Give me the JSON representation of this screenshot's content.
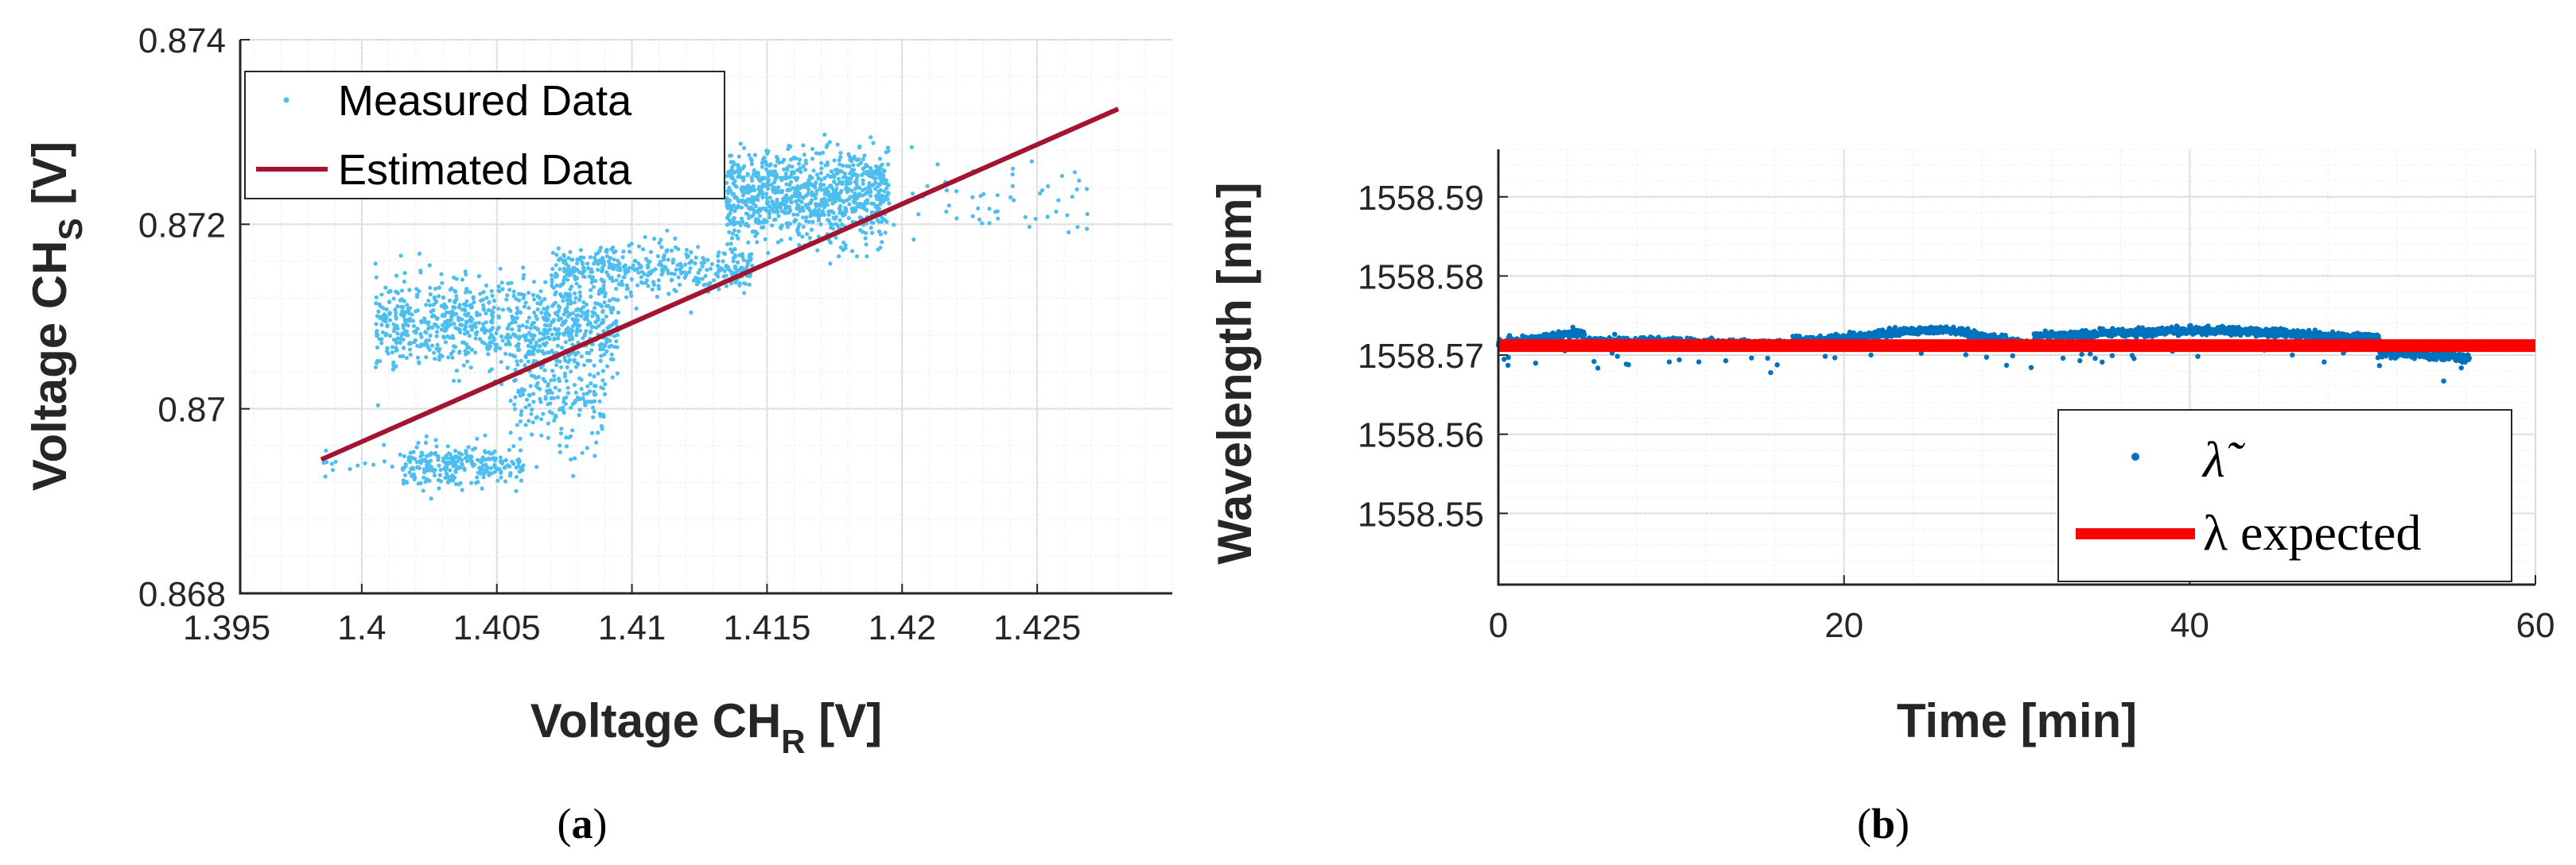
{
  "chart_data": [
    {
      "panel": "a",
      "type": "scatter",
      "xlabel": "Voltage CH",
      "xlabel_sub": "R",
      "xlabel_unit": " [V]",
      "ylabel": "Voltage CH",
      "ylabel_sub": "S",
      "ylabel_unit": " [V]",
      "xlim": [
        1.3955,
        1.43
      ],
      "ylim": [
        0.868,
        0.874
      ],
      "xticks": [
        1.395,
        1.4,
        1.405,
        1.41,
        1.415,
        1.42,
        1.425
      ],
      "xtick_labels": [
        "1.395",
        "1.4",
        "1.405",
        "1.41",
        "1.415",
        "1.42",
        "1.425"
      ],
      "yticks": [
        0.868,
        0.87,
        0.872,
        0.874
      ],
      "ytick_labels": [
        "0.868",
        "0.87",
        "0.872",
        "0.874"
      ],
      "grid": true,
      "legend_position": "top-left",
      "legend_labels": [
        "Measured Data",
        "Estimated Data"
      ],
      "series": [
        {
          "name": "Measured Data",
          "kind": "scatter",
          "color": "#4dbeee",
          "clusters": [
            {
              "x_range": [
                1.4005,
                1.4095
              ],
              "y_center": 0.8709,
              "y_spread": 0.00045,
              "count": 900
            },
            {
              "x_range": [
                1.4135,
                1.4195
              ],
              "y_center": 0.8723,
              "y_spread": 0.00045,
              "count": 900
            },
            {
              "x_range": [
                1.407,
                1.4145
              ],
              "y_center": 0.8715,
              "y_spread": 0.00025,
              "count": 400
            },
            {
              "x_range": [
                1.4015,
                1.406
              ],
              "y_center": 0.8694,
              "y_spread": 0.0002,
              "count": 280
            },
            {
              "x_range": [
                1.4055,
                1.409
              ],
              "y_center": 0.8701,
              "y_spread": 0.0005,
              "count": 180
            },
            {
              "x_range": [
                1.419,
                1.427
              ],
              "y_center": 0.8723,
              "y_spread": 0.0004,
              "count": 60
            },
            {
              "x_range": [
                1.3985,
                1.4015
              ],
              "y_center": 0.8694,
              "y_spread": 0.0002,
              "count": 15
            }
          ]
        },
        {
          "name": "Estimated Data",
          "kind": "line",
          "color": "#a2142f",
          "x": [
            1.3985,
            1.428
          ],
          "y": [
            0.86945,
            0.87325
          ]
        }
      ]
    },
    {
      "panel": "b",
      "type": "scatter",
      "xlabel": "Time [min]",
      "ylabel": "Wavelength [nm]",
      "xlim": [
        0,
        60
      ],
      "ylim": [
        1558.541,
        1558.596
      ],
      "xticks": [
        0,
        20,
        40,
        60
      ],
      "xtick_labels": [
        "0",
        "20",
        "40",
        "60"
      ],
      "yticks": [
        1558.55,
        1558.56,
        1558.57,
        1558.58,
        1558.59
      ],
      "ytick_labels": [
        "1558.55",
        "1558.56",
        "1558.57",
        "1558.58",
        "1558.59"
      ],
      "grid": true,
      "legend_position": "bottom-right",
      "legend_labels": [
        "λ̃",
        "λ expected"
      ],
      "series": [
        {
          "name": "λ̃",
          "kind": "scatter",
          "color": "#0072bd",
          "segments": [
            {
              "t": [
                0,
                5
              ],
              "y_start": 1558.5715,
              "y_end": 1558.5728,
              "noise": 0.0004
            },
            {
              "t": [
                5,
                17
              ],
              "y_start": 1558.5718,
              "y_end": 1558.5714,
              "noise": 0.0004
            },
            {
              "t": [
                17,
                26
              ],
              "y_start": 1558.5718,
              "y_end": 1558.5732,
              "noise": 0.0004
            },
            {
              "t": [
                26,
                31
              ],
              "y_start": 1558.573,
              "y_end": 1558.5713,
              "noise": 0.0004
            },
            {
              "t": [
                31,
                41
              ],
              "y_start": 1558.5725,
              "y_end": 1558.5731,
              "noise": 0.0004
            },
            {
              "t": [
                41,
                51
              ],
              "y_start": 1558.5731,
              "y_end": 1558.5722,
              "noise": 0.0004
            },
            {
              "t": [
                51,
                56.2
              ],
              "y_start": 1558.5703,
              "y_end": 1558.5698,
              "noise": 0.0005
            }
          ]
        },
        {
          "name": "λ expected",
          "kind": "line",
          "color": "#ff0000",
          "x": [
            0,
            60
          ],
          "y": [
            1558.5712,
            1558.5712
          ]
        }
      ]
    }
  ],
  "panel_labels": {
    "a": {
      "open": "(",
      "letter": "a",
      "close": ")"
    },
    "b": {
      "open": "(",
      "letter": "b",
      "close": ")"
    }
  }
}
